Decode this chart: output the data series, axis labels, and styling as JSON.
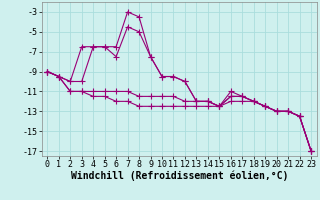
{
  "background_color": "#cff0ee",
  "grid_color": "#aadddd",
  "line_color": "#990077",
  "marker": "+",
  "markersize": 4,
  "linewidth": 0.8,
  "xlim": [
    -0.5,
    23.5
  ],
  "ylim": [
    -17.5,
    -2.0
  ],
  "yticks": [
    -17,
    -15,
    -13,
    -11,
    -9,
    -7,
    -5,
    -3
  ],
  "xticks": [
    0,
    1,
    2,
    3,
    4,
    5,
    6,
    7,
    8,
    9,
    10,
    11,
    12,
    13,
    14,
    15,
    16,
    17,
    18,
    19,
    20,
    21,
    22,
    23
  ],
  "xlabel": "Windchill (Refroidissement éolien,°C)",
  "xlabel_fontsize": 7,
  "tick_fontsize": 6,
  "series": [
    {
      "x": [
        0,
        1,
        2,
        3,
        4,
        5,
        6,
        7,
        8,
        9,
        10,
        11,
        12,
        13,
        14,
        15,
        16,
        17,
        18,
        19,
        20,
        21,
        22,
        23
      ],
      "y": [
        -9.0,
        -9.5,
        -10.0,
        -6.5,
        -6.5,
        -6.5,
        -6.5,
        -3.0,
        -3.5,
        -7.5,
        -9.5,
        -9.5,
        -10.0,
        -12.0,
        -12.0,
        -12.5,
        -11.5,
        -11.5,
        -12.0,
        -12.5,
        -13.0,
        -13.0,
        -13.5,
        -17.0
      ]
    },
    {
      "x": [
        0,
        1,
        2,
        3,
        4,
        5,
        6,
        7,
        8,
        9,
        10,
        11,
        12,
        13,
        14,
        15,
        16,
        17,
        18,
        19,
        20,
        21,
        22,
        23
      ],
      "y": [
        -9.0,
        -9.5,
        -10.0,
        -10.0,
        -6.5,
        -6.5,
        -7.5,
        -4.5,
        -5.0,
        -7.5,
        -9.5,
        -9.5,
        -10.0,
        -12.0,
        -12.0,
        -12.5,
        -11.0,
        -11.5,
        -12.0,
        -12.5,
        -13.0,
        -13.0,
        -13.5,
        -17.0
      ]
    },
    {
      "x": [
        0,
        1,
        2,
        3,
        4,
        5,
        6,
        7,
        8,
        9,
        10,
        11,
        12,
        13,
        14,
        15,
        16,
        17,
        18,
        19,
        20,
        21,
        22,
        23
      ],
      "y": [
        -9.0,
        -9.5,
        -11.0,
        -11.0,
        -11.0,
        -11.0,
        -11.0,
        -11.0,
        -11.5,
        -11.5,
        -11.5,
        -11.5,
        -12.0,
        -12.0,
        -12.0,
        -12.5,
        -11.5,
        -11.5,
        -12.0,
        -12.5,
        -13.0,
        -13.0,
        -13.5,
        -17.0
      ]
    },
    {
      "x": [
        0,
        1,
        2,
        3,
        4,
        5,
        6,
        7,
        8,
        9,
        10,
        11,
        12,
        13,
        14,
        15,
        16,
        17,
        18,
        19,
        20,
        21,
        22,
        23
      ],
      "y": [
        -9.0,
        -9.5,
        -11.0,
        -11.0,
        -11.5,
        -11.5,
        -12.0,
        -12.0,
        -12.5,
        -12.5,
        -12.5,
        -12.5,
        -12.5,
        -12.5,
        -12.5,
        -12.5,
        -12.0,
        -12.0,
        -12.0,
        -12.5,
        -13.0,
        -13.0,
        -13.5,
        -17.0
      ]
    }
  ]
}
